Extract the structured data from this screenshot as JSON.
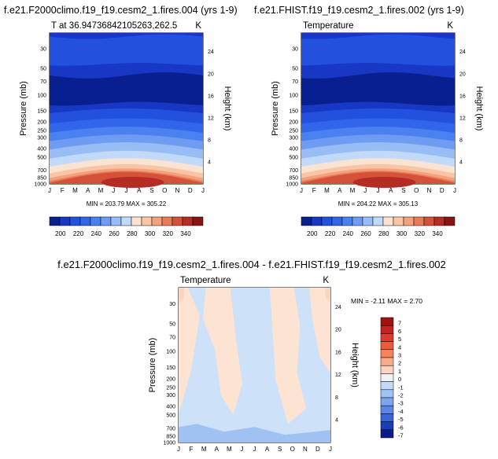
{
  "chart_data": [
    {
      "type": "contour",
      "title": "f.e21.F2000climo.f19_f19.cesm2_1.fires.004 (yrs 1-9)",
      "subtitle": "T at 36.94736842105263,262.5",
      "units": "K",
      "xlabel": "",
      "ylabel": "Pressure (mb)",
      "ylabel_right": "Height (km)",
      "x": [
        "J",
        "F",
        "M",
        "A",
        "M",
        "J",
        "J",
        "A",
        "S",
        "O",
        "N",
        "D",
        "J"
      ],
      "y_ticks": [
        30,
        50,
        70,
        100,
        150,
        200,
        250,
        300,
        400,
        500,
        700,
        850,
        1000
      ],
      "ylim": [
        1000,
        20
      ],
      "y_right_ticks": [
        4,
        8,
        12,
        16,
        20,
        24
      ],
      "min_max": "MIN = 203.79 MAX = 305.22",
      "colorbar_labels": [
        "200",
        "220",
        "240",
        "260",
        "280",
        "300",
        "320",
        "340"
      ]
    },
    {
      "type": "contour",
      "title": "f.e21.FHIST.f19_f19.cesm2_1.fires.002 (yrs 1-9)",
      "subtitle": "Temperature",
      "units": "K",
      "xlabel": "",
      "ylabel": "Pressure (mb)",
      "ylabel_right": "Height (km)",
      "x": [
        "J",
        "F",
        "M",
        "A",
        "M",
        "J",
        "J",
        "A",
        "S",
        "O",
        "N",
        "D",
        "J"
      ],
      "y_ticks": [
        30,
        50,
        70,
        100,
        150,
        200,
        250,
        300,
        400,
        500,
        700,
        850,
        1000
      ],
      "ylim": [
        1000,
        20
      ],
      "y_right_ticks": [
        4,
        8,
        12,
        16,
        20,
        24
      ],
      "min_max": "MIN = 204.22 MAX = 305.13",
      "colorbar_labels": [
        "200",
        "220",
        "240",
        "260",
        "280",
        "300",
        "320",
        "340"
      ]
    },
    {
      "type": "contour",
      "title": "f.e21.F2000climo.f19_f19.cesm2_1.fires.004 - f.e21.FHIST.f19_f19.cesm2_1.fires.002",
      "subtitle": "Temperature",
      "units": "K",
      "xlabel": "",
      "ylabel": "Pressure (mb)",
      "ylabel_right": "Height (km)",
      "x": [
        "J",
        "F",
        "M",
        "A",
        "M",
        "J",
        "J",
        "A",
        "S",
        "O",
        "N",
        "D",
        "J"
      ],
      "y_ticks": [
        30,
        50,
        70,
        100,
        150,
        200,
        250,
        300,
        400,
        500,
        700,
        850,
        1000
      ],
      "ylim": [
        1000,
        20
      ],
      "y_right_ticks": [
        4,
        8,
        12,
        16,
        20,
        24
      ],
      "min_max": "MIN = -2.11 MAX =  2.70",
      "colorbar_labels": [
        "7",
        "6",
        "5",
        "4",
        "3",
        "2",
        "1",
        "0",
        "-1",
        "-2",
        "-3",
        "-4",
        "-5",
        "-6",
        "-7"
      ]
    }
  ],
  "colors": {
    "abs_scale": [
      "#0a1f8f",
      "#1638c4",
      "#2251e0",
      "#3166ea",
      "#4a80ef",
      "#6f9cf2",
      "#98bcf6",
      "#c2daf9",
      "#fbe3d2",
      "#f9c5a6",
      "#f3a27d",
      "#e97b56",
      "#d6513a",
      "#b52d22",
      "#8a1313"
    ],
    "diff_scale": [
      "#9b1414",
      "#c32222",
      "#dd3b2b",
      "#ea5c3f",
      "#f3845d",
      "#f8ac8a",
      "#fcd4bf",
      "#f1f1f1",
      "#c3dbf8",
      "#a0c2f3",
      "#7ea4ee",
      "#5b86e6",
      "#3a63d8",
      "#1c3db6",
      "#0b1d84"
    ],
    "diff_pos": "#fde4d2",
    "diff_neg": "#cde1f9"
  }
}
